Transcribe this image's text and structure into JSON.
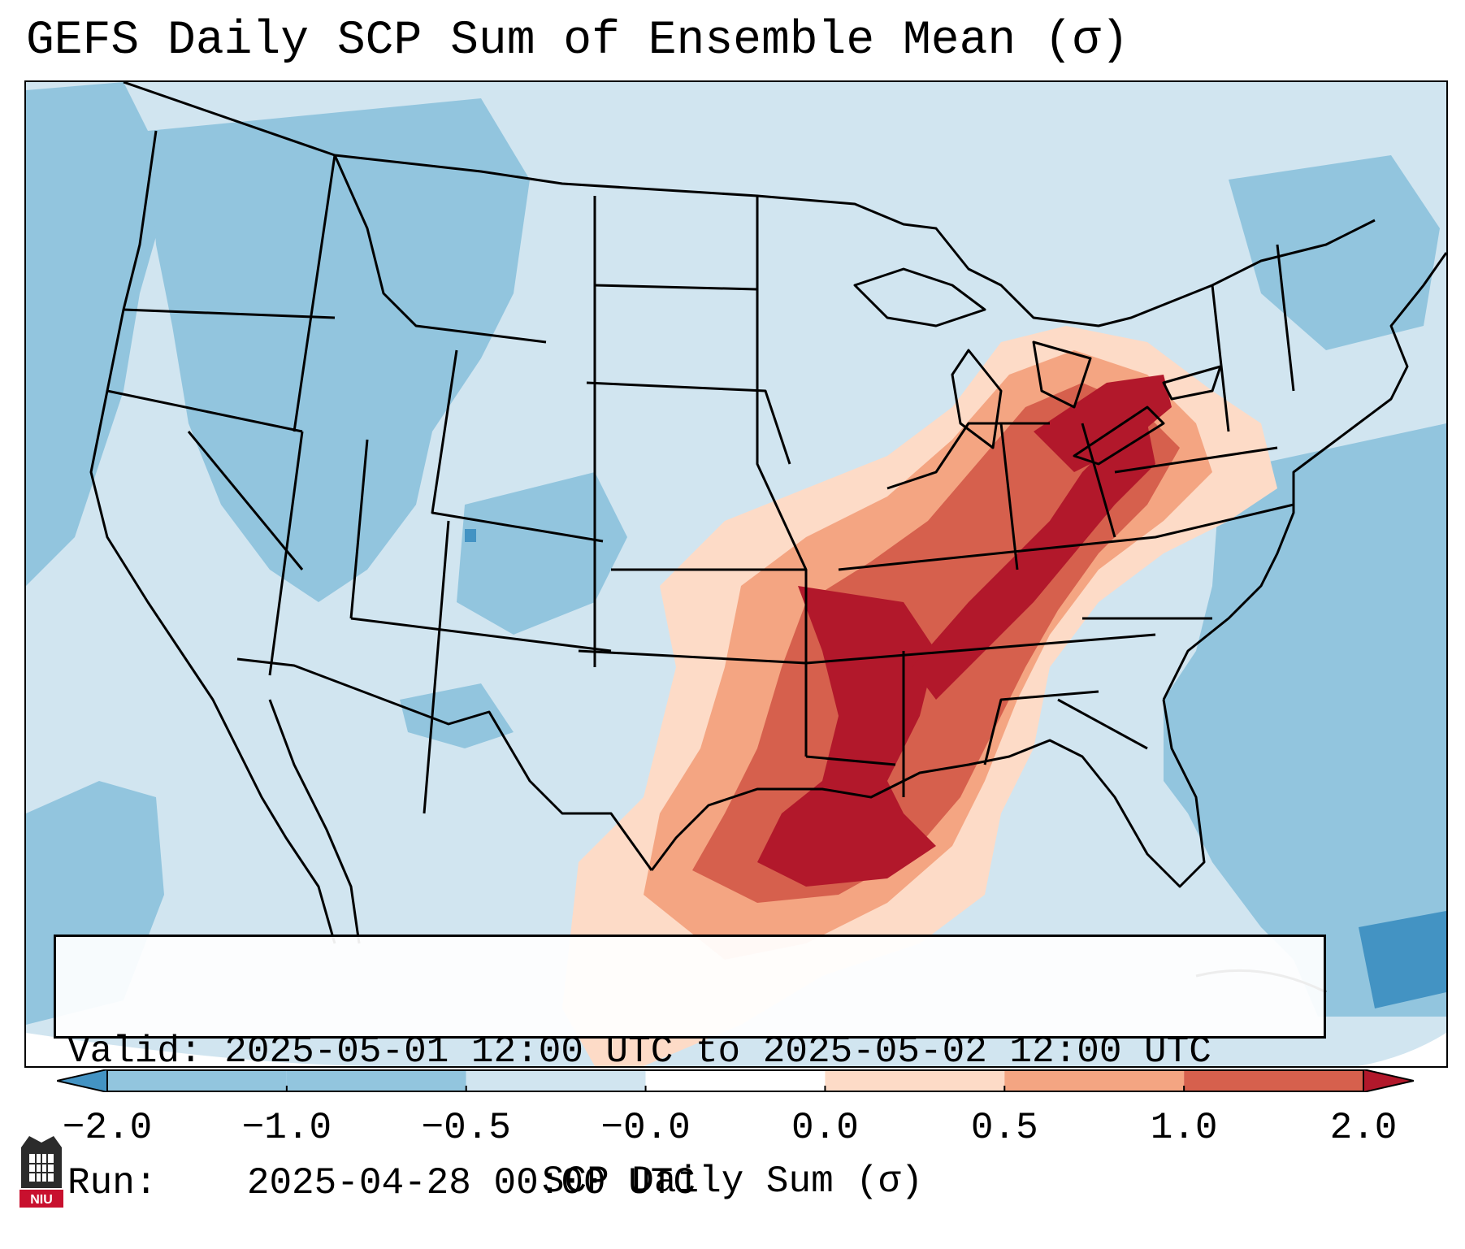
{
  "title": "GEFS Daily SCP Sum of Ensemble Mean (σ)",
  "info": {
    "valid_label": "Valid:",
    "valid_value": "2025-05-01 12:00 UTC to 2025-05-02 12:00 UTC",
    "run_label": "Run:",
    "run_value": "2025-04-28 00:00 UTC"
  },
  "colorbar": {
    "label": "SCP Daily Sum (σ)",
    "ticks": [
      "−2.0",
      "−1.0",
      "−0.5",
      "−0.0",
      "0.0",
      "0.5",
      "1.0",
      "2.0"
    ],
    "colors": [
      "#4393c3",
      "#92c5de",
      "#d1e5f0",
      "#ffffff",
      "#fddbc7",
      "#f4a582",
      "#d6604d",
      "#b2182b"
    ],
    "extend": "both"
  },
  "map": {
    "projection": "Lambert conformal, CONUS",
    "features": [
      "coastlines",
      "state borders",
      "country borders"
    ],
    "background_color": "#d1e5f0",
    "ocean_east_color": "#92c5de",
    "max_region": "Arkansas / Mississippi Valley / Ohio Valley / East Texas",
    "category_colors": {
      "strong_negative": "#4393c3",
      "negative": "#92c5de",
      "near_zero_negative": "#d1e5f0",
      "low_positive": "#fddbc7",
      "moderate_positive": "#f4a582",
      "high_positive": "#d6604d",
      "very_high_positive": "#b2182b"
    }
  },
  "logo": {
    "name": "niu-logo-icon",
    "text": "NIU",
    "color": "#c8102e"
  }
}
